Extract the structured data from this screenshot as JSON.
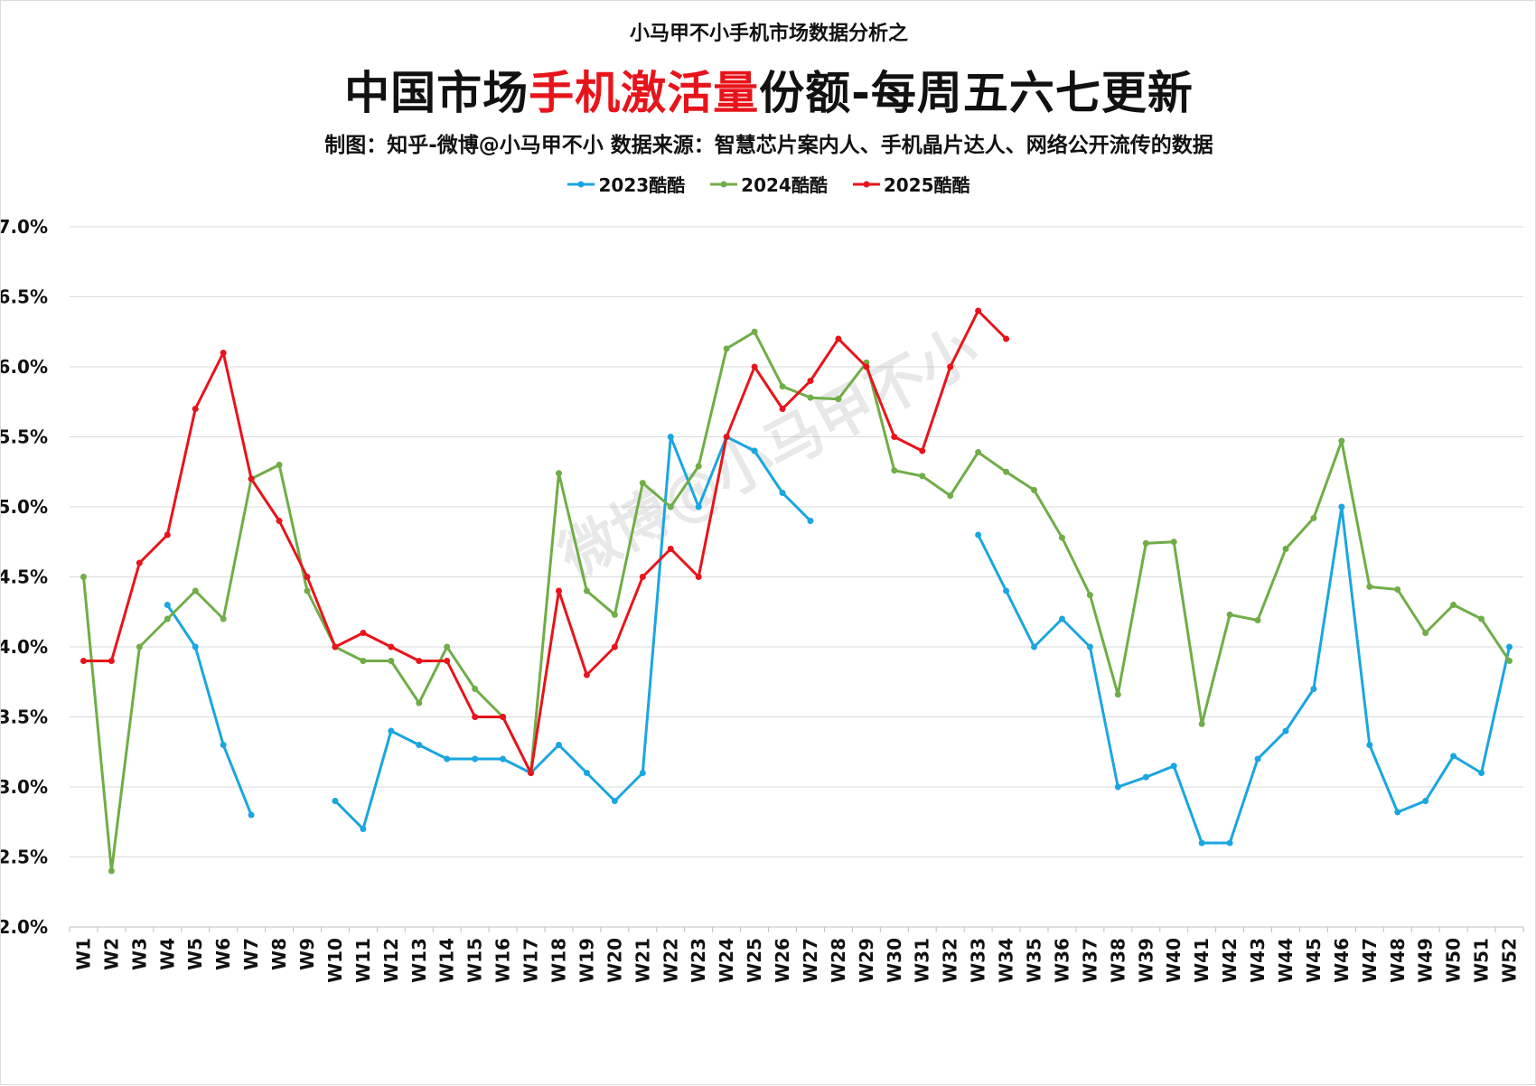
{
  "chart_data": {
    "type": "line",
    "supertitle": "小马甲不小手机市场数据分析之",
    "title_parts": [
      "中国市场",
      "手机激活量",
      "份额-每周五六七更新"
    ],
    "subtitle": "制图：知乎-微博@小马甲不小  数据来源：智慧芯片案内人、手机晶片达人、网络公开流传的数据",
    "watermark": "微博@小马甲不小",
    "ylim": [
      2.0,
      7.0
    ],
    "yticks": [
      "2.0%",
      "2.5%",
      "3.0%",
      "3.5%",
      "4.0%",
      "4.5%",
      "5.0%",
      "5.5%",
      "6.0%",
      "6.5%",
      "7.0%"
    ],
    "ytick_values": [
      2.0,
      2.5,
      3.0,
      3.5,
      4.0,
      4.5,
      5.0,
      5.5,
      6.0,
      6.5,
      7.0
    ],
    "categories": [
      "W1",
      "W2",
      "W3",
      "W4",
      "W5",
      "W6",
      "W7",
      "W8",
      "W9",
      "W10",
      "W11",
      "W12",
      "W13",
      "W14",
      "W15",
      "W16",
      "W17",
      "W18",
      "W19",
      "W20",
      "W21",
      "W22",
      "W23",
      "W24",
      "W25",
      "W26",
      "W27",
      "W28",
      "W29",
      "W30",
      "W31",
      "W32",
      "W33",
      "W34",
      "W35",
      "W36",
      "W37",
      "W38",
      "W39",
      "W40",
      "W41",
      "W42",
      "W43",
      "W44",
      "W45",
      "W46",
      "W47",
      "W48",
      "W49",
      "W50",
      "W51",
      "W52"
    ],
    "grid": true,
    "legend_position": "top",
    "series": [
      {
        "name": "2023酷酷",
        "color": "#1aa6e0",
        "values": [
          null,
          null,
          null,
          4.3,
          4.0,
          3.3,
          2.8,
          null,
          null,
          2.9,
          2.7,
          3.4,
          3.3,
          3.2,
          3.2,
          3.2,
          3.1,
          3.3,
          3.1,
          2.9,
          3.1,
          5.5,
          5.0,
          5.5,
          5.4,
          5.1,
          4.9,
          null,
          null,
          null,
          null,
          null,
          4.8,
          4.4,
          4.0,
          4.2,
          4.0,
          3.0,
          3.07,
          3.15,
          2.6,
          2.6,
          3.2,
          3.4,
          3.7,
          5.0,
          3.3,
          2.82,
          2.9,
          3.22,
          3.1,
          4.0
        ]
      },
      {
        "name": "2024酷酷",
        "color": "#70ad47",
        "values": [
          4.5,
          2.4,
          4.0,
          4.2,
          4.4,
          4.2,
          5.2,
          5.3,
          4.4,
          4.0,
          3.9,
          3.9,
          3.6,
          4.0,
          3.7,
          3.5,
          3.1,
          5.24,
          4.4,
          4.23,
          5.17,
          5.0,
          5.29,
          6.13,
          6.25,
          5.86,
          5.78,
          5.77,
          6.03,
          5.26,
          5.22,
          5.08,
          5.39,
          5.25,
          5.12,
          4.78,
          4.37,
          3.66,
          4.74,
          4.75,
          3.45,
          4.23,
          4.19,
          4.7,
          4.92,
          5.47,
          4.43,
          4.41,
          4.1,
          4.3,
          4.2,
          3.9
        ]
      },
      {
        "name": "2025酷酷",
        "color": "#e8141b",
        "values": [
          3.9,
          3.9,
          4.6,
          4.8,
          5.7,
          6.1,
          5.2,
          4.9,
          4.5,
          4.0,
          4.1,
          4.0,
          3.9,
          3.9,
          3.5,
          3.5,
          3.1,
          4.4,
          3.8,
          4.0,
          4.5,
          4.7,
          4.5,
          5.5,
          6.0,
          5.7,
          5.9,
          6.2,
          6.0,
          5.5,
          5.4,
          6.0,
          6.4,
          6.2,
          null,
          null,
          null,
          null,
          null,
          null,
          null,
          null,
          null,
          null,
          null,
          null,
          null,
          null,
          null,
          null,
          null,
          null
        ]
      }
    ]
  }
}
